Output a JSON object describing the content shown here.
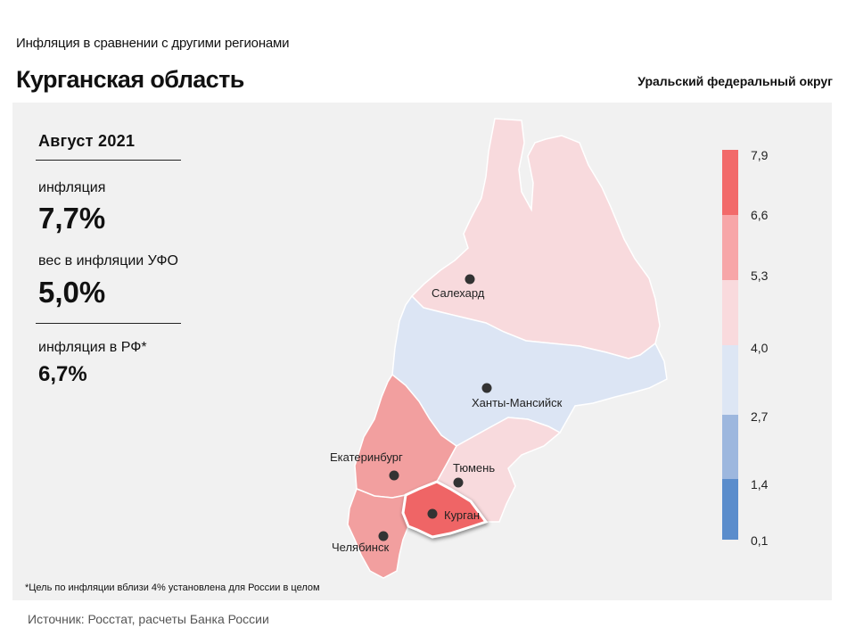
{
  "header": {
    "subtitle": "Инфляция  в сравнении  с другими  регионами",
    "title": "Курганская область",
    "district": "Уральский федеральный округ"
  },
  "panel": {
    "period": "Август 2021",
    "inflation_label": "инфляция",
    "inflation_value": "7,7%",
    "weight_label": "вес в инфляции  УФО",
    "weight_value": "5,0%",
    "rf_label": "инфляция  в РФ*",
    "rf_value": "6,7%"
  },
  "cities": {
    "salekhard": "Салехард",
    "khanty": "Ханты-Мансийск",
    "ekaterinburg": "Екатеринбург",
    "tyumen": "Тюмень",
    "kurgan": "Курган",
    "chelyabinsk": "Челябинск"
  },
  "legend": {
    "ticks": [
      "7,9",
      "6,6",
      "5,3",
      "4,0",
      "2,7",
      "1,4",
      "0,1"
    ],
    "colors": [
      "#f26a6a",
      "#f7a6a8",
      "#f9dadd",
      "#dde6f4",
      "#9db7de",
      "#5b8dcc"
    ]
  },
  "regions": {
    "yamal": {
      "color": "#f8dadd"
    },
    "khmao": {
      "color": "#dce5f4"
    },
    "sverdlovsk": {
      "color": "#f29f9f"
    },
    "tyumen": {
      "color": "#f8dadd"
    },
    "chelyabinsk": {
      "color": "#f29f9f"
    },
    "kurgan": {
      "color": "#ef6566"
    }
  },
  "footnote": "*Цель по инфляции вблизи 4% установлена для России в целом",
  "source": "Источник: Росстат, расчеты Банка России"
}
